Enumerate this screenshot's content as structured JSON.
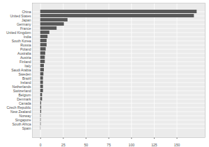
{
  "chart_data": {
    "type": "bar",
    "orientation": "horizontal",
    "categories": [
      "China",
      "United States",
      "Japan",
      "Germany",
      "France",
      "United Kingdom",
      "India",
      "South Korea",
      "Russia",
      "Poland",
      "Australia",
      "Austria",
      "Finland",
      "Italy",
      "Saudi Arabia",
      "Sweden",
      "Brazil",
      "Ireland",
      "Netherlands",
      "Switzerland",
      "Belgium",
      "Denmark",
      "Canada",
      "Czech Republic",
      "New Zealand",
      "Norway",
      "Singapore",
      "South Africa",
      "Spain"
    ],
    "values": [
      172,
      169,
      30,
      26,
      18,
      10,
      8,
      7,
      7,
      6,
      5.5,
      5,
      5,
      4,
      4,
      3.5,
      3,
      3,
      3,
      3,
      2,
      2,
      1,
      1,
      1,
      0.5,
      0.5,
      0.5,
      0.3
    ],
    "color": "#595959",
    "xlim": [
      -9,
      181
    ],
    "xticks": [
      0,
      25,
      50,
      75,
      100,
      125,
      150
    ],
    "grid": true
  }
}
